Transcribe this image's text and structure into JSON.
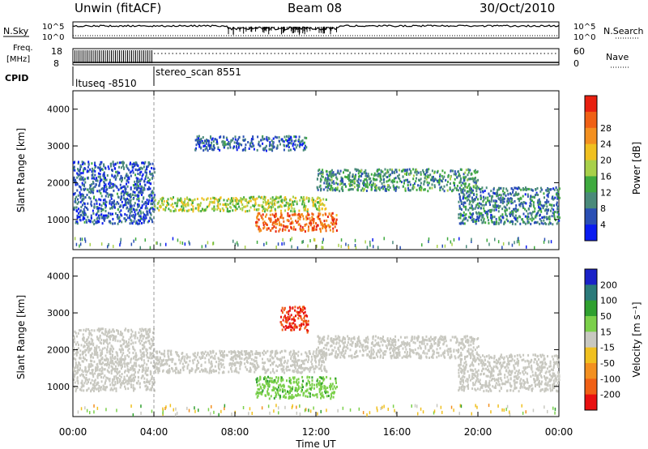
{
  "header": {
    "station": "Unwin (fitACF)",
    "beam": "Beam 08",
    "date": "30/Oct/2010"
  },
  "top_panels": {
    "nsky_label": "N.Sky",
    "nsearch_label": "N.Search",
    "power_ticks": [
      "10^5",
      "10^0"
    ],
    "freq_label_1": "Freq.",
    "freq_label_2": "[MHz]",
    "freq_ticks": [
      "18",
      "8"
    ],
    "nave_label": "Nave",
    "nave_ticks": [
      "60",
      "0"
    ],
    "cpid_label": "CPID",
    "cpid_segments": [
      {
        "name": "ltuseq -8510",
        "start_hour": 0,
        "end_hour": 4
      },
      {
        "name": "stereo_scan 8551",
        "start_hour": 4,
        "end_hour": 24
      }
    ]
  },
  "chart_data": [
    {
      "type": "heatmap",
      "title": "",
      "xlabel": "Time UT",
      "ylabel": "Slant Range [km]",
      "xlim": [
        0,
        24
      ],
      "ylim": [
        180,
        4500
      ],
      "x_ticks": [
        "00:00",
        "04:00",
        "08:00",
        "12:00",
        "16:00",
        "20:00",
        "00:00"
      ],
      "y_ticks": [
        1000,
        2000,
        3000,
        4000
      ],
      "colorbar": {
        "label": "Power [dB]",
        "ticks": [
          4,
          8,
          12,
          16,
          20,
          24,
          28
        ],
        "colors": [
          "#0a1cf0",
          "#2a4fb4",
          "#4a8a7a",
          "#3faa3f",
          "#a8d04a",
          "#f0c020",
          "#f39020",
          "#f06015",
          "#e82010"
        ]
      },
      "echo_bands": [
        {
          "t_start": 0.0,
          "t_end": 4.0,
          "range_low": 900,
          "range_high": 2600,
          "power_db": 6
        },
        {
          "t_start": 4.0,
          "t_end": 12.5,
          "range_low": 1250,
          "range_high": 1650,
          "power_db": 16
        },
        {
          "t_start": 9.0,
          "t_end": 13.0,
          "range_low": 700,
          "range_high": 1200,
          "power_db": 26
        },
        {
          "t_start": 6.0,
          "t_end": 11.5,
          "range_low": 2900,
          "range_high": 3300,
          "power_db": 6
        },
        {
          "t_start": 12.0,
          "t_end": 20.0,
          "range_low": 1800,
          "range_high": 2400,
          "power_db": 10
        },
        {
          "t_start": 19.0,
          "t_end": 24.0,
          "range_low": 900,
          "range_high": 1900,
          "power_db": 8
        }
      ]
    },
    {
      "type": "heatmap",
      "title": "",
      "xlabel": "Time UT",
      "ylabel": "Slant Range [km]",
      "xlim": [
        0,
        24
      ],
      "ylim": [
        180,
        4500
      ],
      "x_ticks": [
        "00:00",
        "04:00",
        "08:00",
        "12:00",
        "16:00",
        "20:00",
        "00:00"
      ],
      "y_ticks": [
        1000,
        2000,
        3000,
        4000
      ],
      "colorbar": {
        "label": "Velocity [m s⁻¹]",
        "ticks": [
          200,
          100,
          50,
          15,
          -15,
          -50,
          -100,
          -200
        ],
        "colors": [
          "#1a22c8",
          "#2b7a7a",
          "#2fa02f",
          "#7bd04a",
          "#c8c8c0",
          "#f0c020",
          "#f39020",
          "#f06015",
          "#e81010"
        ]
      },
      "echo_bands": [
        {
          "t_start": 0.0,
          "t_end": 4.0,
          "range_low": 900,
          "range_high": 2600,
          "velocity": 0
        },
        {
          "t_start": 4.0,
          "t_end": 12.5,
          "range_low": 1400,
          "range_high": 2000,
          "velocity": 0
        },
        {
          "t_start": 9.0,
          "t_end": 13.0,
          "range_low": 700,
          "range_high": 1300,
          "velocity": 40
        },
        {
          "t_start": 10.2,
          "t_end": 11.6,
          "range_low": 2500,
          "range_high": 3200,
          "velocity": -200
        },
        {
          "t_start": 12.0,
          "t_end": 20.0,
          "range_low": 1800,
          "range_high": 2400,
          "velocity": 0
        },
        {
          "t_start": 19.0,
          "t_end": 24.0,
          "range_low": 900,
          "range_high": 1900,
          "velocity": 0
        }
      ]
    }
  ]
}
